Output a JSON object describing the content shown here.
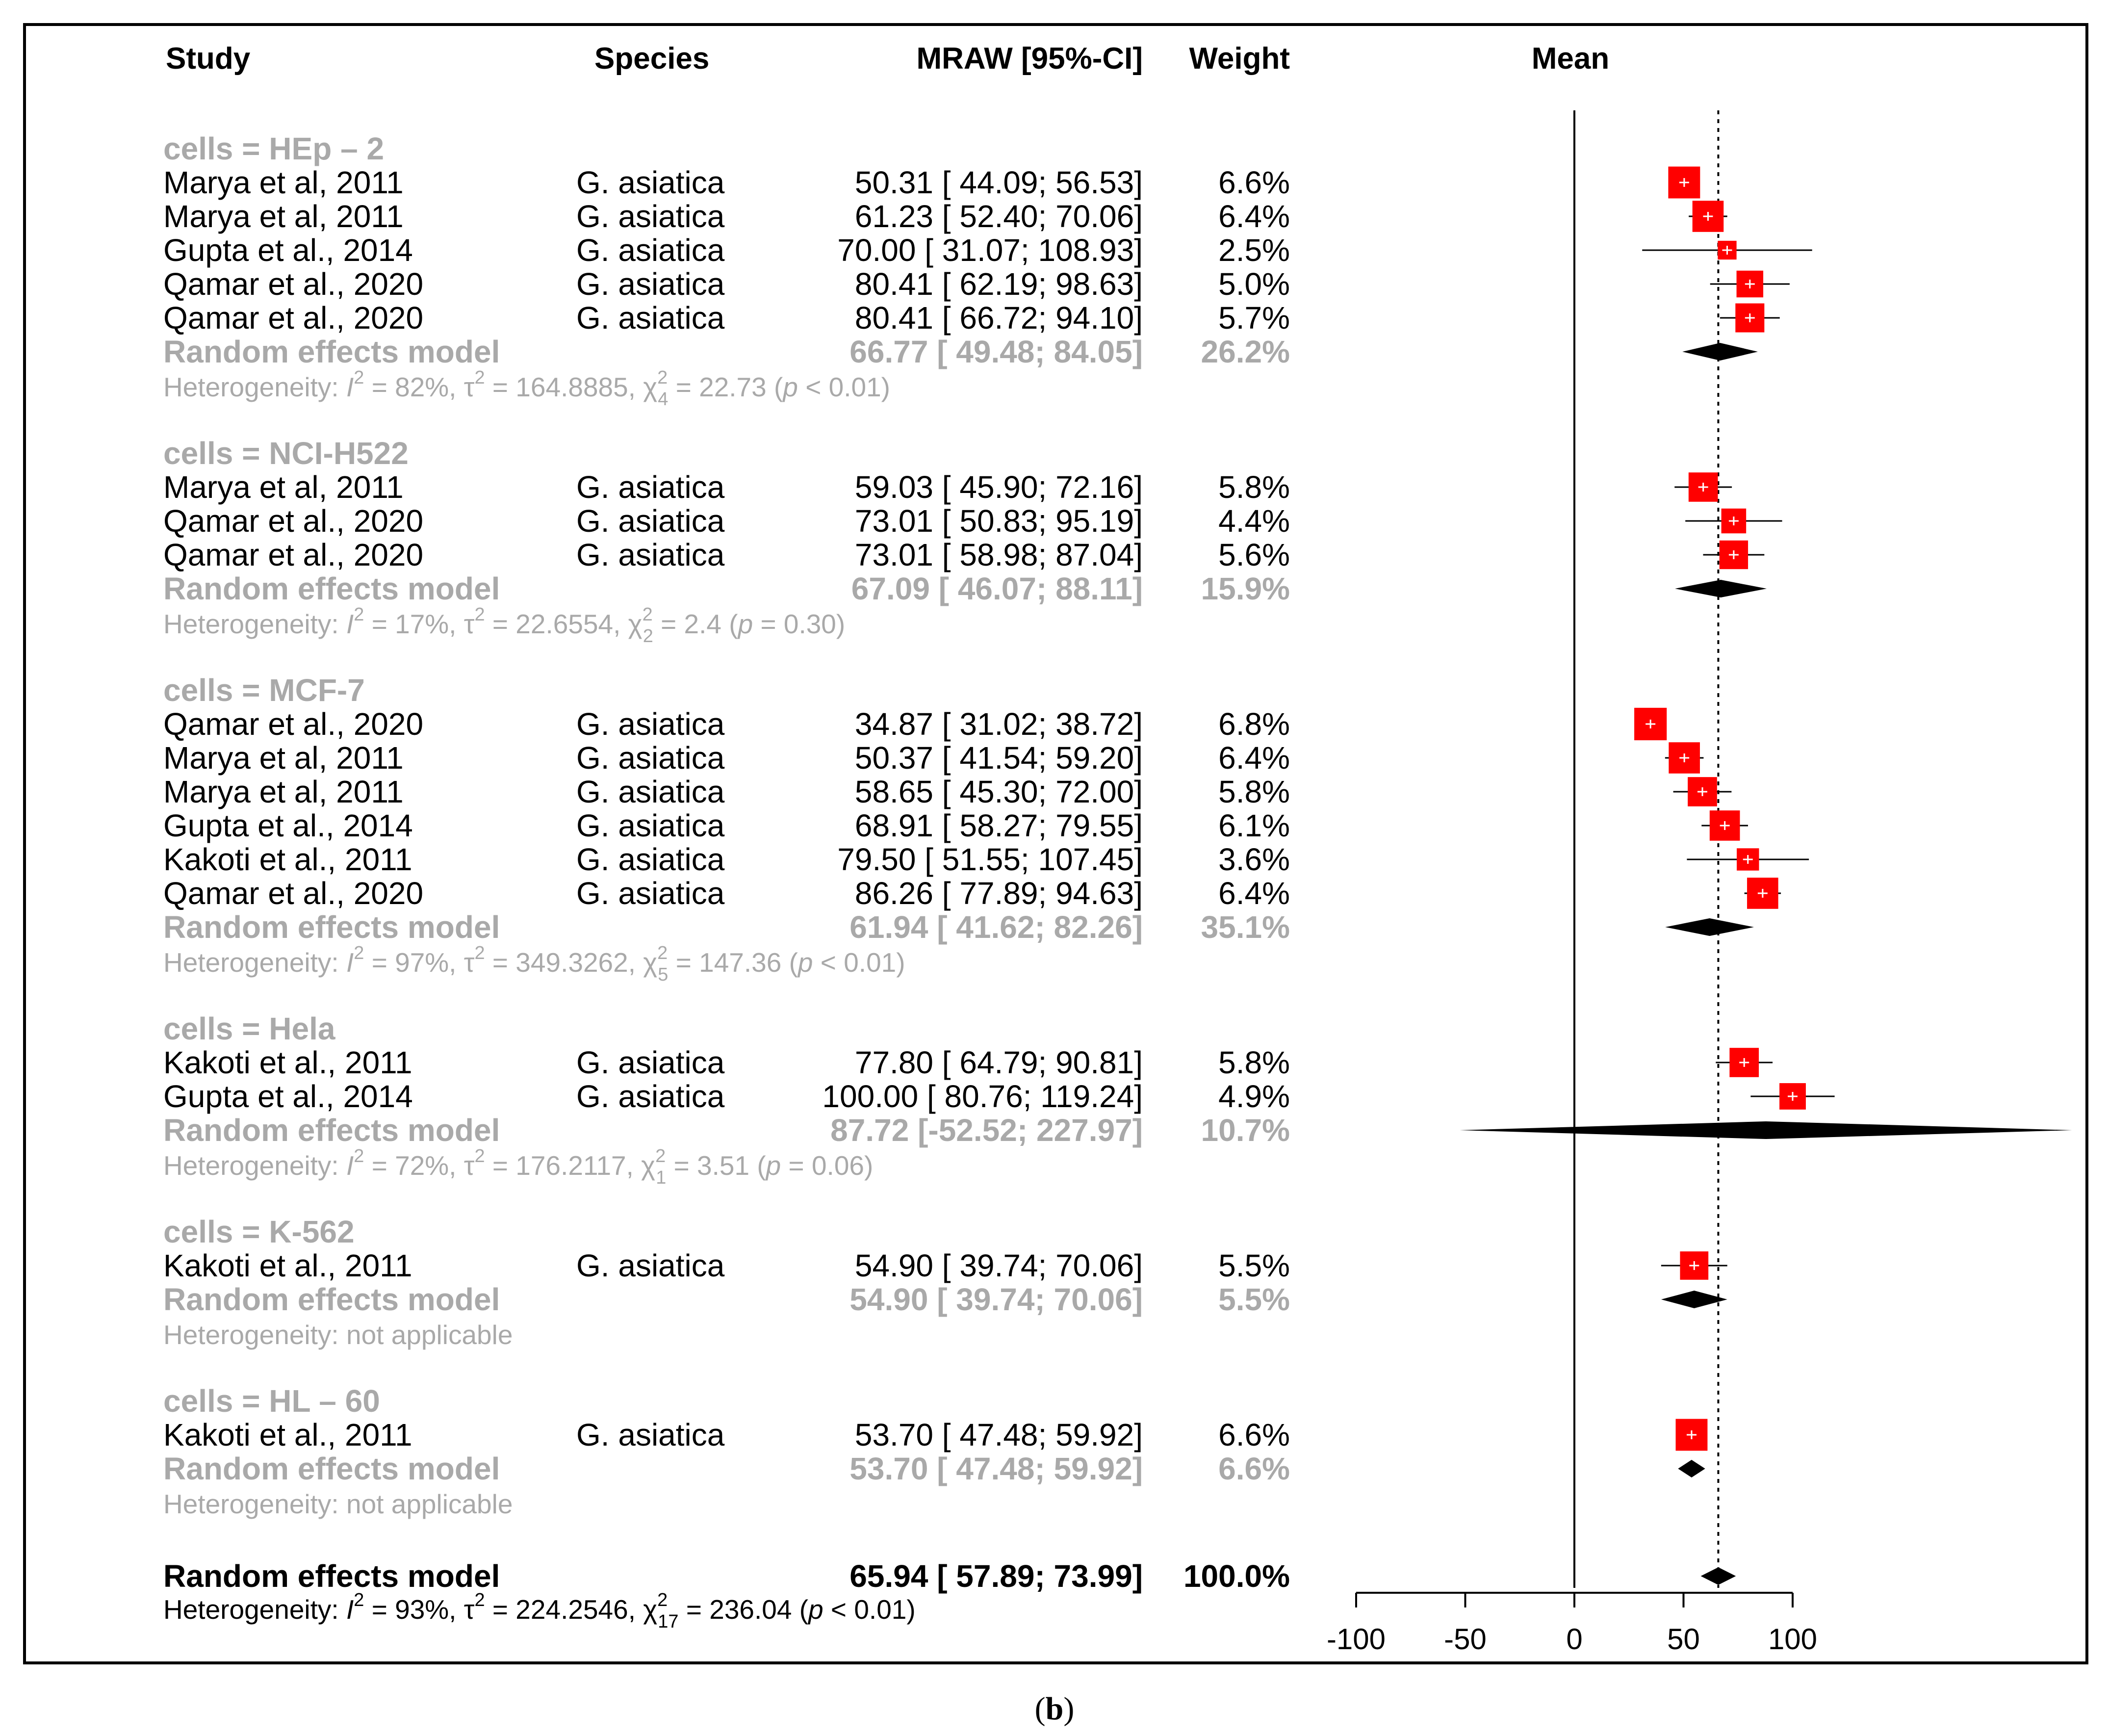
{
  "chart_data": {
    "type": "forest",
    "headers": {
      "study": "Study",
      "species": "Species",
      "ci": "MRAW [95%-CI]",
      "weight": "Weight",
      "mean": "Mean"
    },
    "reference_line": 65.94,
    "xlim": [
      -100,
      100
    ],
    "ticks": [
      "-100",
      "-50",
      "0",
      "50",
      "100"
    ],
    "tick_values": [
      -100,
      -50,
      0,
      50,
      100
    ],
    "groups": [
      {
        "label": "cells = HEp – 2",
        "rows": [
          {
            "study": "Marya et al, 2011",
            "species": "G. asiatica",
            "ci": "50.31 [ 44.09;  56.53]",
            "weight": "6.6%",
            "mean": 50.31,
            "lo": 44.09,
            "hi": 56.53,
            "w": 6.6
          },
          {
            "study": "Marya et al, 2011",
            "species": "G. asiatica",
            "ci": "61.23 [ 52.40;  70.06]",
            "weight": "6.4%",
            "mean": 61.23,
            "lo": 52.4,
            "hi": 70.06,
            "w": 6.4
          },
          {
            "study": "Gupta et al., 2014",
            "species": "G. asiatica",
            "ci": "70.00 [ 31.07; 108.93]",
            "weight": "2.5%",
            "mean": 70.0,
            "lo": 31.07,
            "hi": 108.93,
            "w": 2.5
          },
          {
            "study": "Qamar et al., 2020",
            "species": "G. asiatica",
            "ci": "80.41 [ 62.19;  98.63]",
            "weight": "5.0%",
            "mean": 80.41,
            "lo": 62.19,
            "hi": 98.63,
            "w": 5.0
          },
          {
            "study": "Qamar et al., 2020",
            "species": "G. asiatica",
            "ci": "80.41 [ 66.72;  94.10]",
            "weight": "5.7%",
            "mean": 80.41,
            "lo": 66.72,
            "hi": 94.1,
            "w": 5.7
          }
        ],
        "model": {
          "label": "Random effects model",
          "ci": "66.77 [ 49.48;  84.05]",
          "weight": "26.2%",
          "mean": 66.77,
          "lo": 49.48,
          "hi": 84.05
        },
        "het": {
          "i2": "82%",
          "tau2": "164.8885",
          "df": "4",
          "chi2": "22.73",
          "p": "< 0.01"
        }
      },
      {
        "label": "cells = NCI-H522",
        "rows": [
          {
            "study": "Marya et al, 2011",
            "species": "G. asiatica",
            "ci": "59.03 [ 45.90;  72.16]",
            "weight": "5.8%",
            "mean": 59.03,
            "lo": 45.9,
            "hi": 72.16,
            "w": 5.8
          },
          {
            "study": "Qamar et al., 2020",
            "species": "G. asiatica",
            "ci": "73.01 [ 50.83;  95.19]",
            "weight": "4.4%",
            "mean": 73.01,
            "lo": 50.83,
            "hi": 95.19,
            "w": 4.4
          },
          {
            "study": "Qamar et al., 2020",
            "species": "G. asiatica",
            "ci": "73.01 [ 58.98;  87.04]",
            "weight": "5.6%",
            "mean": 73.01,
            "lo": 58.98,
            "hi": 87.04,
            "w": 5.6
          }
        ],
        "model": {
          "label": "Random effects model",
          "ci": "67.09 [ 46.07;  88.11]",
          "weight": "15.9%",
          "mean": 67.09,
          "lo": 46.07,
          "hi": 88.11
        },
        "het": {
          "i2": "17%",
          "tau2": "22.6554",
          "df": "2",
          "chi2": "2.4",
          "p": "= 0.30"
        }
      },
      {
        "label": "cells = MCF-7",
        "rows": [
          {
            "study": "Qamar et al., 2020",
            "species": "G. asiatica",
            "ci": "34.87 [ 31.02;  38.72]",
            "weight": "6.8%",
            "mean": 34.87,
            "lo": 31.02,
            "hi": 38.72,
            "w": 6.8
          },
          {
            "study": "Marya et al, 2011",
            "species": "G. asiatica",
            "ci": "50.37 [ 41.54;  59.20]",
            "weight": "6.4%",
            "mean": 50.37,
            "lo": 41.54,
            "hi": 59.2,
            "w": 6.4
          },
          {
            "study": "Marya et al, 2011",
            "species": "G. asiatica",
            "ci": "58.65 [ 45.30;  72.00]",
            "weight": "5.8%",
            "mean": 58.65,
            "lo": 45.3,
            "hi": 72.0,
            "w": 5.8
          },
          {
            "study": "Gupta et al., 2014",
            "species": "G. asiatica",
            "ci": "68.91 [ 58.27;  79.55]",
            "weight": "6.1%",
            "mean": 68.91,
            "lo": 58.27,
            "hi": 79.55,
            "w": 6.1
          },
          {
            "study": "Kakoti et al., 2011",
            "species": "G. asiatica",
            "ci": "79.50 [ 51.55; 107.45]",
            "weight": "3.6%",
            "mean": 79.5,
            "lo": 51.55,
            "hi": 107.45,
            "w": 3.6
          },
          {
            "study": "Qamar et al., 2020",
            "species": "G. asiatica",
            "ci": "86.26 [ 77.89;  94.63]",
            "weight": "6.4%",
            "mean": 86.26,
            "lo": 77.89,
            "hi": 94.63,
            "w": 6.4
          }
        ],
        "model": {
          "label": "Random effects model",
          "ci": "61.94 [ 41.62;  82.26]",
          "weight": "35.1%",
          "mean": 61.94,
          "lo": 41.62,
          "hi": 82.26
        },
        "het": {
          "i2": "97%",
          "tau2": "349.3262",
          "df": "5",
          "chi2": "147.36",
          "p": "< 0.01"
        }
      },
      {
        "label": "cells = Hela",
        "rows": [
          {
            "study": "Kakoti et al., 2011",
            "species": "G. asiatica",
            "ci": "77.80 [ 64.79;  90.81]",
            "weight": "5.8%",
            "mean": 77.8,
            "lo": 64.79,
            "hi": 90.81,
            "w": 5.8
          },
          {
            "study": "Gupta et al., 2014",
            "species": "G. asiatica",
            "ci": "100.00 [ 80.76; 119.24]",
            "weight": "4.9%",
            "mean": 100.0,
            "lo": 80.76,
            "hi": 119.24,
            "w": 4.9
          }
        ],
        "model": {
          "label": "Random effects model",
          "ci": "87.72 [-52.52; 227.97]",
          "weight": "10.7%",
          "mean": 87.72,
          "lo": -52.52,
          "hi": 227.97
        },
        "het": {
          "i2": "72%",
          "tau2": "176.2117",
          "df": "1",
          "chi2": "3.51",
          "p": "= 0.06"
        }
      },
      {
        "label": "cells = K-562",
        "rows": [
          {
            "study": "Kakoti et al., 2011",
            "species": "G. asiatica",
            "ci": "54.90 [ 39.74;  70.06]",
            "weight": "5.5%",
            "mean": 54.9,
            "lo": 39.74,
            "hi": 70.06,
            "w": 5.5
          }
        ],
        "model": {
          "label": "Random effects model",
          "ci": "54.90 [ 39.74;  70.06]",
          "weight": "5.5%",
          "mean": 54.9,
          "lo": 39.74,
          "hi": 70.06
        },
        "het_text": "Heterogeneity: not applicable"
      },
      {
        "label": "cells = HL – 60",
        "rows": [
          {
            "study": "Kakoti et al., 2011",
            "species": "G. asiatica",
            "ci": "53.70 [ 47.48;  59.92]",
            "weight": "6.6%",
            "mean": 53.7,
            "lo": 47.48,
            "hi": 59.92,
            "w": 6.6
          }
        ],
        "model": {
          "label": "Random effects model",
          "ci": "53.70 [ 47.48;  59.92]",
          "weight": "6.6%",
          "mean": 53.7,
          "lo": 47.48,
          "hi": 59.92
        },
        "het_text": "Heterogeneity: not applicable"
      }
    ],
    "overall": {
      "label": "Random effects model",
      "ci": "65.94 [ 57.89;  73.99]",
      "weight": "100.0%",
      "mean": 65.94,
      "lo": 57.89,
      "hi": 73.99,
      "het": {
        "i2": "93%",
        "tau2": "224.2546",
        "df": "17",
        "chi2": "236.04",
        "p": "< 0.01"
      }
    },
    "het_prefix": "Heterogeneity: ",
    "caption_open": "(",
    "caption_letter": "b",
    "caption_close": ")"
  }
}
